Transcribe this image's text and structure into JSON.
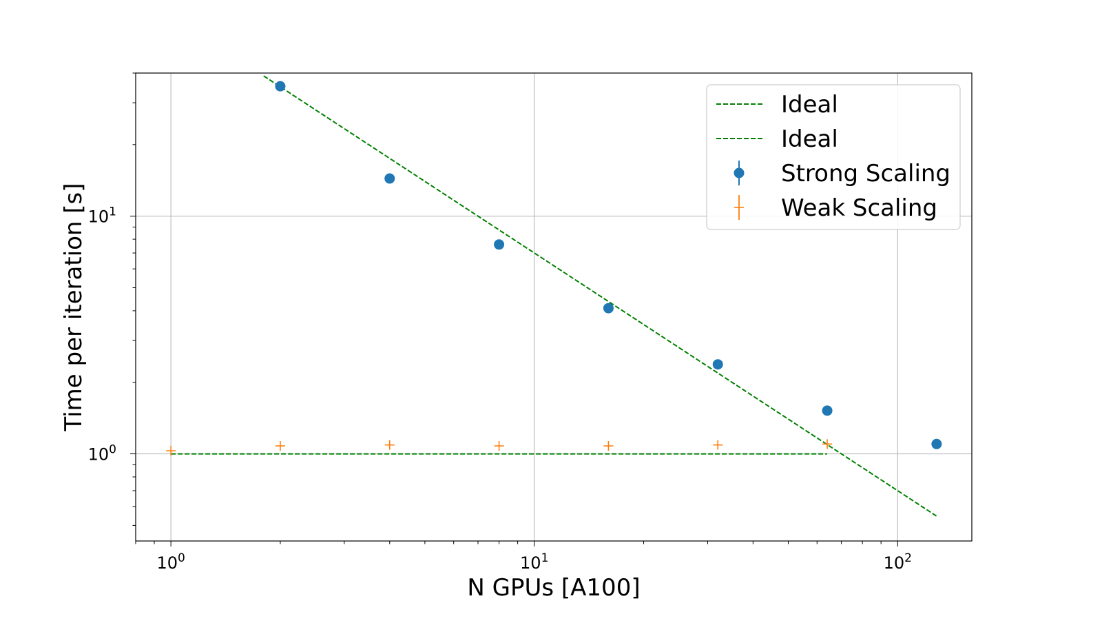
{
  "chart_data": {
    "type": "scatter",
    "title": "",
    "xlabel": "N GPUs [A100]",
    "ylabel": "Time per iteration [s]",
    "xscale": "log",
    "yscale": "log",
    "xlim": [
      0.8,
      160
    ],
    "ylim": [
      0.43,
      40
    ],
    "grid": true,
    "legend_position": "top-right",
    "x_ticks": [
      {
        "value": 1,
        "base": "10",
        "exp": "0"
      },
      {
        "value": 10,
        "base": "10",
        "exp": "1"
      },
      {
        "value": 100,
        "base": "10",
        "exp": "2"
      }
    ],
    "y_ticks": [
      {
        "value": 1,
        "base": "10",
        "exp": "0"
      },
      {
        "value": 10,
        "base": "10",
        "exp": "1"
      }
    ],
    "series": [
      {
        "name": "Ideal",
        "kind": "line",
        "style": "dashed",
        "color": "#008000",
        "x": [
          1.8,
          128
        ],
        "y": [
          38.9,
          0.547
        ]
      },
      {
        "name": "Ideal",
        "kind": "line",
        "style": "dashed",
        "color": "#008000",
        "x": [
          1,
          64
        ],
        "y": [
          1.0,
          1.0
        ]
      },
      {
        "name": "Strong Scaling",
        "kind": "marker",
        "marker": "circle",
        "color": "#1f77b4",
        "x": [
          2,
          4,
          8,
          16,
          32,
          64,
          128
        ],
        "y": [
          35.2,
          14.4,
          7.6,
          4.1,
          2.38,
          1.52,
          1.1
        ]
      },
      {
        "name": "Weak Scaling",
        "kind": "marker",
        "marker": "plus",
        "color": "#ff7f0e",
        "x": [
          1,
          2,
          4,
          8,
          16,
          32,
          64
        ],
        "y": [
          1.03,
          1.08,
          1.09,
          1.08,
          1.08,
          1.09,
          1.1
        ]
      }
    ]
  }
}
